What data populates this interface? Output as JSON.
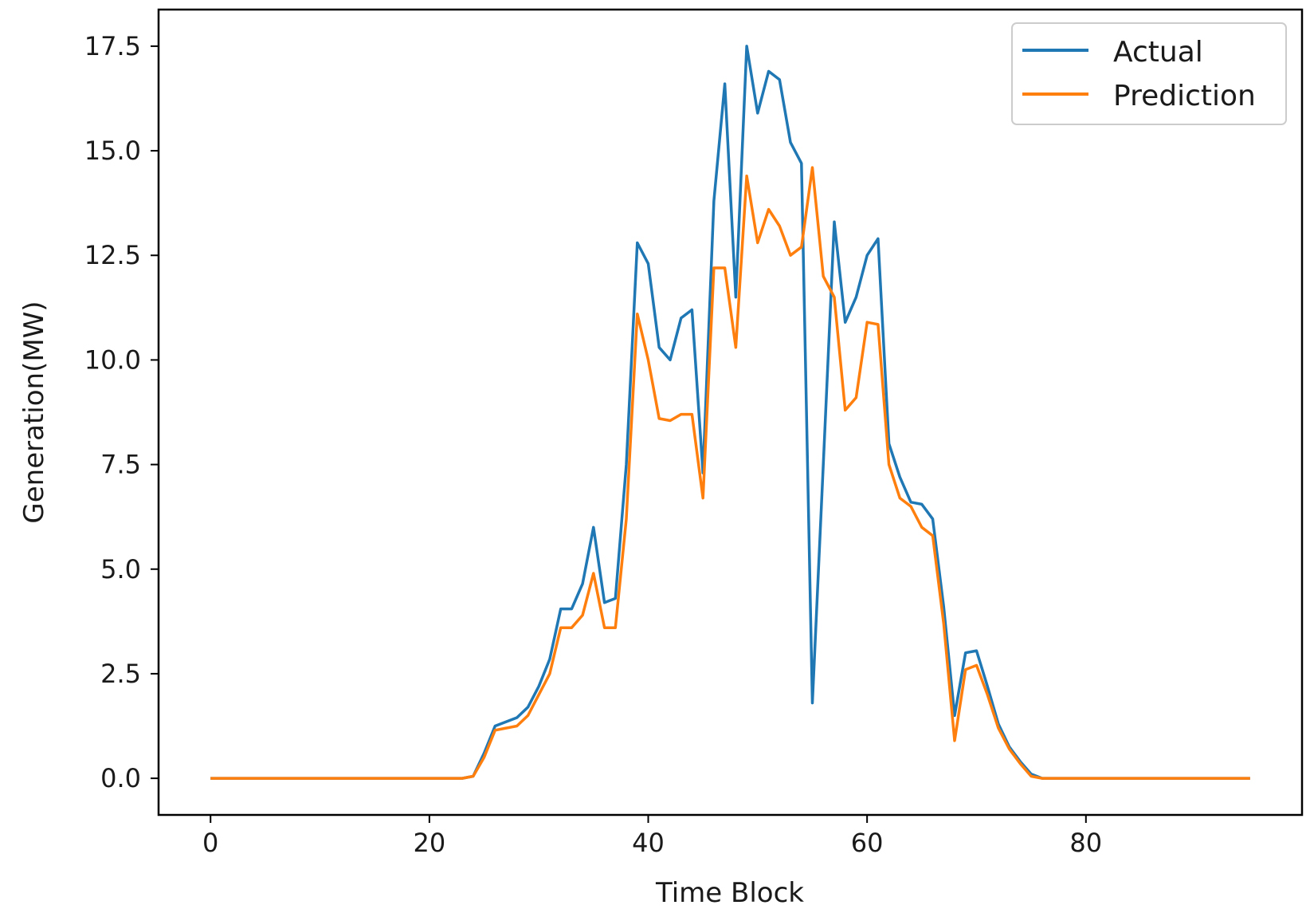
{
  "chart_data": {
    "type": "line",
    "title": "",
    "xlabel": "Time Block",
    "ylabel": "Generation(MW)",
    "xlim": [
      -4.75,
      99.75
    ],
    "ylim": [
      -0.875,
      18.375
    ],
    "xticks": [
      0,
      20,
      40,
      60,
      80
    ],
    "xtick_labels": [
      "0",
      "20",
      "40",
      "60",
      "80"
    ],
    "yticks": [
      0,
      2.5,
      5,
      7.5,
      10,
      12.5,
      15,
      17.5
    ],
    "ytick_labels": [
      "0.0",
      "2.5",
      "5.0",
      "7.5",
      "10.0",
      "12.5",
      "15.0",
      "17.5"
    ],
    "grid": false,
    "legend_position": "top-right",
    "x": [
      0,
      1,
      2,
      3,
      4,
      5,
      6,
      7,
      8,
      9,
      10,
      11,
      12,
      13,
      14,
      15,
      16,
      17,
      18,
      19,
      20,
      21,
      22,
      23,
      24,
      25,
      26,
      27,
      28,
      29,
      30,
      31,
      32,
      33,
      34,
      35,
      36,
      37,
      38,
      39,
      40,
      41,
      42,
      43,
      44,
      45,
      46,
      47,
      48,
      49,
      50,
      51,
      52,
      53,
      54,
      55,
      56,
      57,
      58,
      59,
      60,
      61,
      62,
      63,
      64,
      65,
      66,
      67,
      68,
      69,
      70,
      71,
      72,
      73,
      74,
      75,
      76,
      77,
      78,
      79,
      80,
      81,
      82,
      83,
      84,
      85,
      86,
      87,
      88,
      89,
      90,
      91,
      92,
      93,
      94,
      95
    ],
    "series": [
      {
        "name": "Actual",
        "color": "#1f77b4",
        "values": [
          0,
          0,
          0,
          0,
          0,
          0,
          0,
          0,
          0,
          0,
          0,
          0,
          0,
          0,
          0,
          0,
          0,
          0,
          0,
          0,
          0,
          0,
          0,
          0,
          0.05,
          0.6,
          1.25,
          1.35,
          1.45,
          1.7,
          2.2,
          2.85,
          4.05,
          4.05,
          4.65,
          6.0,
          4.2,
          4.3,
          7.5,
          12.8,
          12.3,
          10.3,
          10.0,
          11.0,
          11.2,
          7.3,
          13.8,
          16.6,
          11.5,
          17.5,
          15.9,
          16.9,
          16.7,
          15.2,
          14.7,
          1.8,
          7.5,
          13.3,
          10.9,
          11.5,
          12.5,
          12.9,
          8.0,
          7.2,
          6.6,
          6.55,
          6.2,
          4.1,
          1.5,
          3.0,
          3.05,
          2.2,
          1.3,
          0.75,
          0.4,
          0.1,
          0,
          0,
          0,
          0,
          0,
          0,
          0,
          0,
          0,
          0,
          0,
          0,
          0,
          0,
          0,
          0,
          0,
          0,
          0,
          0
        ]
      },
      {
        "name": "Prediction",
        "color": "#ff7f0e",
        "values": [
          0,
          0,
          0,
          0,
          0,
          0,
          0,
          0,
          0,
          0,
          0,
          0,
          0,
          0,
          0,
          0,
          0,
          0,
          0,
          0,
          0,
          0,
          0,
          0,
          0.05,
          0.5,
          1.15,
          1.2,
          1.25,
          1.5,
          2.0,
          2.5,
          3.6,
          3.6,
          3.9,
          4.9,
          3.6,
          3.6,
          6.2,
          11.1,
          10.0,
          8.6,
          8.55,
          8.7,
          8.7,
          6.7,
          12.2,
          12.2,
          10.3,
          14.4,
          12.8,
          13.6,
          13.2,
          12.5,
          12.7,
          14.6,
          12.0,
          11.5,
          8.8,
          9.1,
          10.9,
          10.85,
          7.5,
          6.7,
          6.5,
          6.0,
          5.8,
          3.7,
          0.9,
          2.6,
          2.7,
          2.0,
          1.2,
          0.7,
          0.35,
          0.05,
          0,
          0,
          0,
          0,
          0,
          0,
          0,
          0,
          0,
          0,
          0,
          0,
          0,
          0,
          0,
          0,
          0,
          0,
          0,
          0
        ]
      }
    ]
  }
}
